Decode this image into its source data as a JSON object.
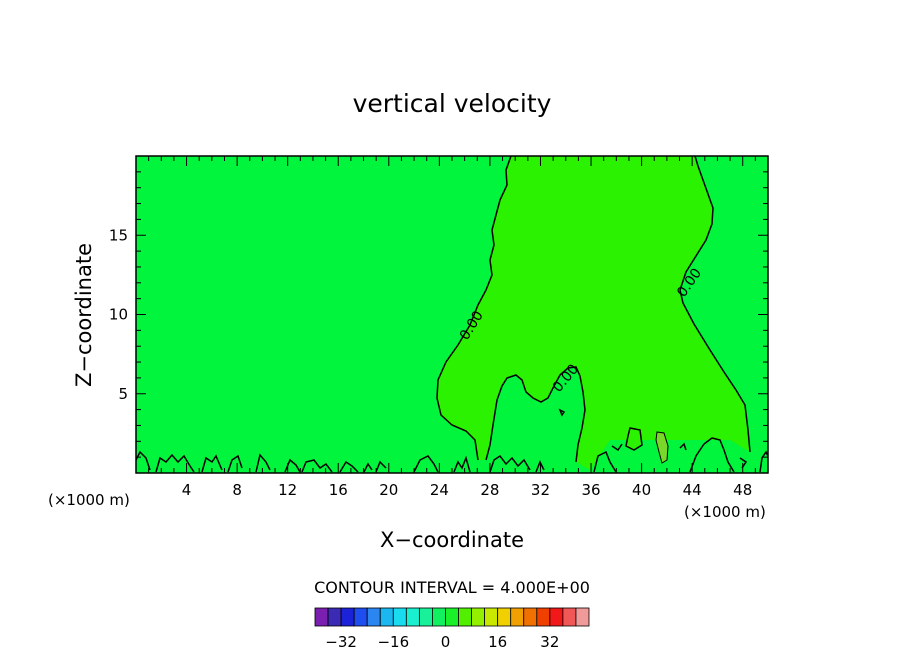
{
  "chart_data": {
    "type": "contour",
    "title": "vertical velocity",
    "xlabel": "X−coordinate",
    "ylabel": "Z−coordinate",
    "x_unit_left": "(×1000 m)",
    "x_unit_right": "(×1000 m)",
    "xlim": [
      0,
      50
    ],
    "ylim": [
      0,
      20
    ],
    "x_ticks": [
      4,
      8,
      12,
      16,
      20,
      24,
      28,
      32,
      36,
      40,
      44,
      48
    ],
    "y_ticks": [
      5,
      10,
      15
    ],
    "grid": false,
    "contour_level_label": "0.00",
    "contour_interval_text": "CONTOUR INTERVAL = 4.000E+00",
    "colorbar": {
      "ticks": [
        -32,
        -16,
        0,
        16,
        32
      ],
      "colors": [
        "#7a1fb0",
        "#3a2ab4",
        "#1c22d8",
        "#1f4ef0",
        "#2b86f2",
        "#1ab7f0",
        "#19dcf0",
        "#19f0cf",
        "#19f09a",
        "#12f060",
        "#19f02a",
        "#52f000",
        "#92f000",
        "#c8e800",
        "#f0d000",
        "#f0a000",
        "#f07000",
        "#f04000",
        "#f01818",
        "#f05858",
        "#f09a9a"
      ]
    },
    "regions": [
      {
        "value_range": "-4 to 0",
        "color": "#00f53c"
      },
      {
        "value_range": "0 to 4",
        "color": "#2af200"
      },
      {
        "value_range": "4 to 8",
        "color": "#7ad82a"
      }
    ]
  }
}
